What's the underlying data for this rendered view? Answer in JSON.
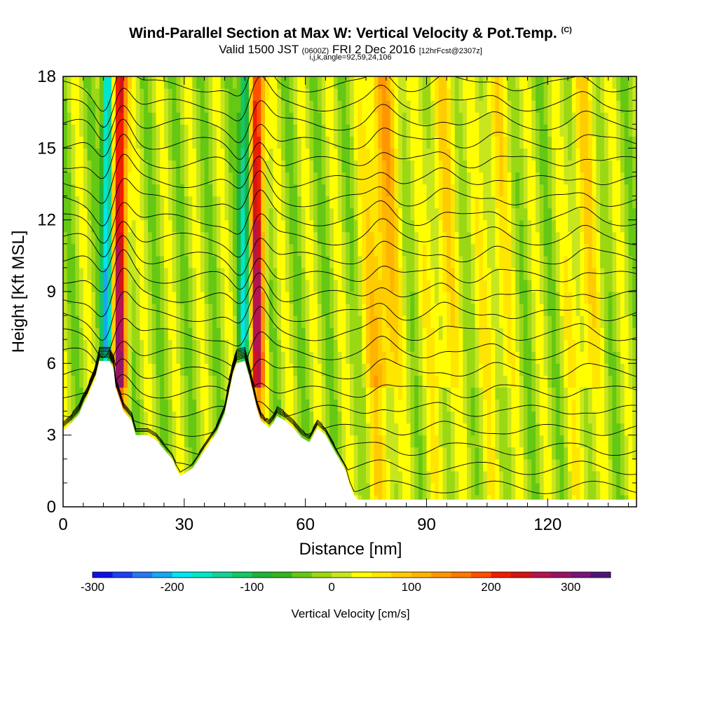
{
  "header": {
    "title_main": "Wind-Parallel Section at Max W: Vertical Velocity & Pot.Temp.",
    "title_mark": "(C)",
    "valid_a": "Valid 1500 JST",
    "valid_b": "(0600Z)",
    "valid_c": "FRI 2 Dec 2016",
    "valid_d": "[12hrFcst@2307z]",
    "params": "i,j,k,angle=92,59,24,106"
  },
  "chart_data": {
    "type": "heatmap",
    "xlabel": "Distance [nm]",
    "ylabel": "Height [Kft MSL]",
    "xlim": [
      0,
      142
    ],
    "ylim": [
      0,
      18
    ],
    "x_ticks": [
      "0",
      "30",
      "60",
      "90",
      "120"
    ],
    "y_ticks": [
      "0",
      "3",
      "6",
      "9",
      "12",
      "15",
      "18"
    ],
    "colorbar": {
      "label": "Vertical Velocity [cm/s]",
      "range": [
        -300,
        350
      ],
      "tick_labels": [
        "-300",
        "-200",
        "-100",
        "0",
        "100",
        "200",
        "300"
      ],
      "colors": [
        "#1010e6",
        "#1e40f0",
        "#2878f0",
        "#14aaf0",
        "#00e6f0",
        "#00e6c8",
        "#14d296",
        "#14c864",
        "#1eb43c",
        "#32b41e",
        "#64c814",
        "#9ad814",
        "#c8e61e",
        "#ffff00",
        "#ffe600",
        "#ffcc00",
        "#ffb400",
        "#ff9600",
        "#ff7800",
        "#ff5000",
        "#f01e00",
        "#d21414",
        "#b41450",
        "#961464",
        "#781478",
        "#501478"
      ]
    },
    "updrafts": [
      {
        "x": 14,
        "w_peak": 270
      },
      {
        "x": 48,
        "w_peak": 250
      },
      {
        "x": 79,
        "w_peak": 110
      },
      {
        "x": 94,
        "w_peak": 60
      },
      {
        "x": 107,
        "w_peak": 50
      },
      {
        "x": 129,
        "w_peak": 60
      }
    ],
    "downdrafts": [
      {
        "x": 11,
        "w_peak": -230
      },
      {
        "x": 45,
        "w_peak": -170
      }
    ],
    "terrain": [
      [
        0,
        3.2
      ],
      [
        2,
        3.5
      ],
      [
        4,
        3.9
      ],
      [
        5,
        4.3
      ],
      [
        6,
        4.6
      ],
      [
        7,
        5.0
      ],
      [
        8,
        5.4
      ],
      [
        9,
        6.1
      ],
      [
        11.5,
        6.1
      ],
      [
        12.5,
        5.8
      ],
      [
        13,
        5.0
      ],
      [
        14,
        4.5
      ],
      [
        15,
        4.0
      ],
      [
        17,
        3.6
      ],
      [
        18,
        3.0
      ],
      [
        21,
        3.0
      ],
      [
        23,
        2.8
      ],
      [
        25,
        2.4
      ],
      [
        27,
        2.0
      ],
      [
        28,
        1.6
      ],
      [
        29,
        1.3
      ],
      [
        32,
        1.6
      ],
      [
        34,
        2.1
      ],
      [
        36,
        2.6
      ],
      [
        38,
        3.1
      ],
      [
        40,
        3.9
      ],
      [
        41,
        4.7
      ],
      [
        42,
        5.5
      ],
      [
        43,
        6.0
      ],
      [
        45,
        6.1
      ],
      [
        46,
        5.5
      ],
      [
        47,
        4.8
      ],
      [
        48,
        4.1
      ],
      [
        49,
        3.6
      ],
      [
        51,
        3.3
      ],
      [
        52,
        3.5
      ],
      [
        53,
        3.8
      ],
      [
        55,
        3.6
      ],
      [
        57,
        3.3
      ],
      [
        59,
        2.9
      ],
      [
        61,
        2.7
      ],
      [
        62,
        3.0
      ],
      [
        63,
        3.3
      ],
      [
        65,
        3.0
      ],
      [
        66,
        2.7
      ],
      [
        68,
        2.1
      ],
      [
        70,
        1.5
      ],
      [
        71,
        0.9
      ],
      [
        72,
        0.5
      ],
      [
        73,
        0.3
      ],
      [
        142,
        0.3
      ]
    ],
    "isentropes_count": 22
  }
}
